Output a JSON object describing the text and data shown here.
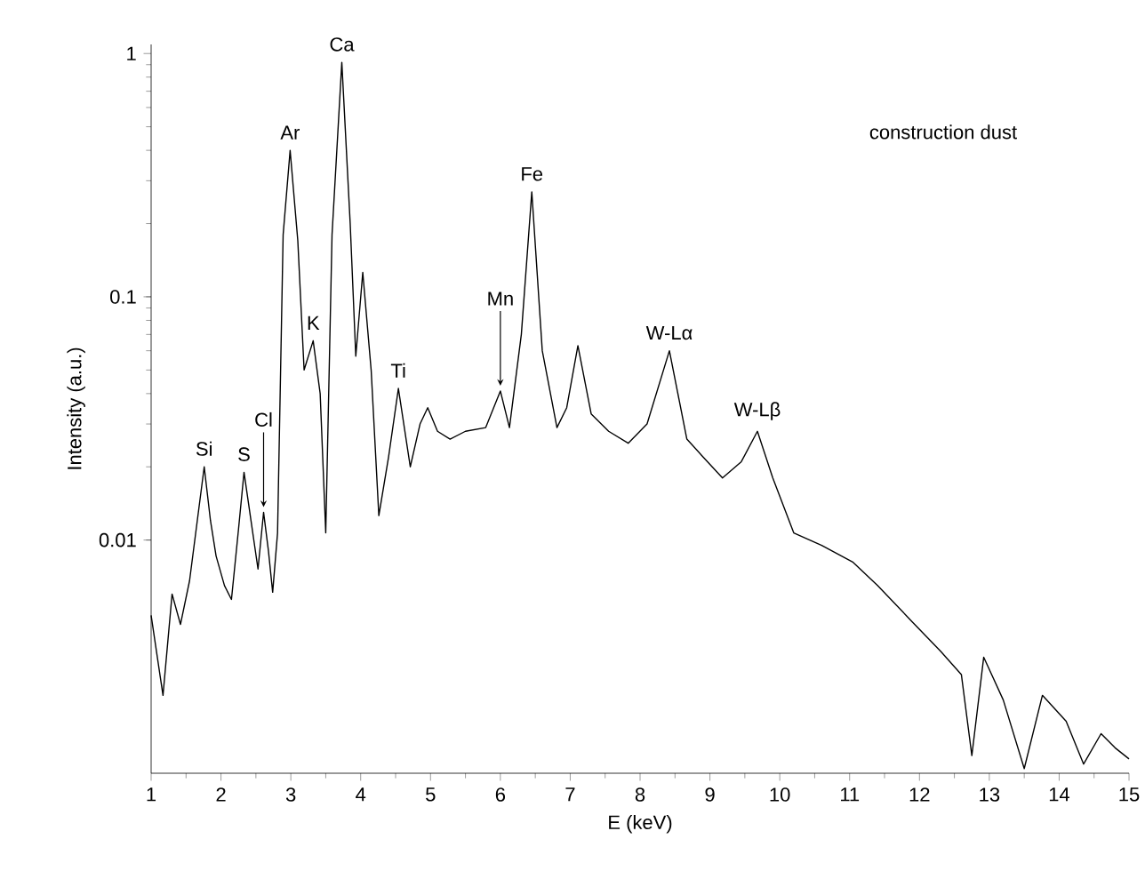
{
  "chart_data": {
    "type": "line",
    "xlabel": "E (keV)",
    "ylabel": "Intensity (a.u.)",
    "log": "y",
    "color": "#000000",
    "xlim": [
      1,
      15
    ],
    "ylim": [
      0.0011,
      1.09
    ],
    "xticks": [
      1,
      2,
      3,
      4,
      5,
      6,
      7,
      8,
      9,
      10,
      11,
      12,
      13,
      14,
      15
    ],
    "yticks": [
      0.01,
      0.1,
      1
    ],
    "x": [
      1.0,
      1.17,
      1.3,
      1.42,
      1.55,
      1.76,
      1.85,
      1.93,
      2.05,
      2.15,
      2.25,
      2.33,
      2.43,
      2.53,
      2.61,
      2.68,
      2.74,
      2.81,
      2.89,
      2.99,
      3.1,
      3.19,
      3.32,
      3.42,
      3.5,
      3.59,
      3.73,
      3.85,
      3.93,
      4.03,
      4.15,
      4.26,
      4.4,
      4.54,
      4.71,
      4.85,
      4.96,
      5.1,
      5.28,
      5.5,
      5.79,
      6.0,
      6.13,
      6.3,
      6.45,
      6.6,
      6.81,
      6.95,
      7.11,
      7.3,
      7.55,
      7.83,
      8.1,
      8.42,
      8.67,
      8.9,
      9.18,
      9.45,
      9.68,
      9.9,
      10.2,
      10.6,
      11.05,
      11.4,
      11.9,
      12.3,
      12.6,
      12.75,
      12.92,
      13.2,
      13.5,
      13.76,
      14.1,
      14.35,
      14.6,
      14.8,
      15.0
    ],
    "values": [
      0.0049,
      0.0023,
      0.006,
      0.0045,
      0.0068,
      0.02,
      0.012,
      0.0086,
      0.0065,
      0.0057,
      0.011,
      0.019,
      0.012,
      0.0076,
      0.013,
      0.009,
      0.0061,
      0.0107,
      0.18,
      0.4,
      0.17,
      0.05,
      0.066,
      0.04,
      0.0107,
      0.18,
      0.92,
      0.2,
      0.057,
      0.126,
      0.05,
      0.0126,
      0.022,
      0.042,
      0.02,
      0.03,
      0.035,
      0.028,
      0.026,
      0.028,
      0.029,
      0.041,
      0.029,
      0.07,
      0.27,
      0.06,
      0.029,
      0.035,
      0.063,
      0.033,
      0.028,
      0.025,
      0.03,
      0.06,
      0.026,
      0.022,
      0.018,
      0.021,
      0.028,
      0.018,
      0.0107,
      0.0095,
      0.0081,
      0.0065,
      0.0046,
      0.0035,
      0.0028,
      0.0013,
      0.0033,
      0.0022,
      0.00115,
      0.0023,
      0.0018,
      0.0012,
      0.0016,
      0.0014,
      0.00126
    ],
    "annotations": [
      {
        "text": "Si",
        "x": 1.76,
        "y": 0.02
      },
      {
        "text": "S",
        "x": 2.33,
        "y": 0.019
      },
      {
        "text": "Cl",
        "x": 2.61,
        "y": 0.013
      },
      {
        "text": "Ar",
        "x": 2.99,
        "y": 0.4
      },
      {
        "text": "K",
        "x": 3.32,
        "y": 0.066
      },
      {
        "text": "Ca",
        "x": 3.73,
        "y": 0.92
      },
      {
        "text": "Ti",
        "x": 4.54,
        "y": 0.042
      },
      {
        "text": "Mn",
        "x": 6.0,
        "y": 0.041
      },
      {
        "text": "Fe",
        "x": 6.45,
        "y": 0.27
      },
      {
        "text": "W-Lα",
        "x": 8.42,
        "y": 0.06
      },
      {
        "text": "W-Lβ",
        "x": 9.68,
        "y": 0.028
      },
      "construction dust"
    ]
  }
}
